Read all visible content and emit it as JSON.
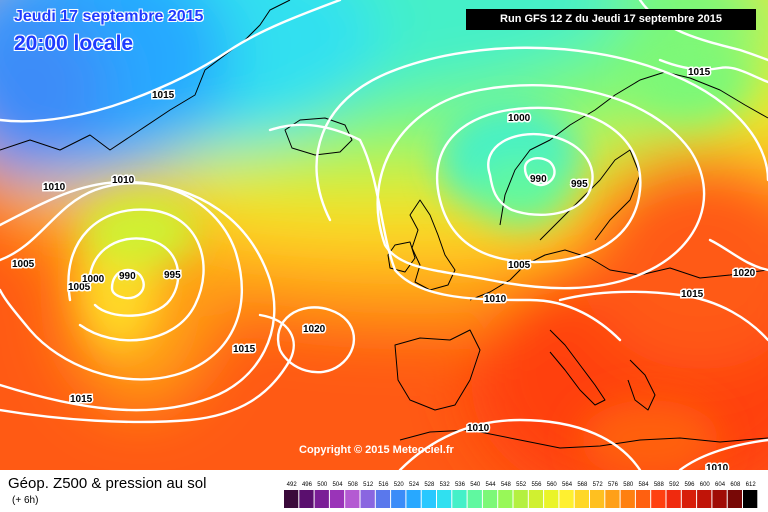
{
  "header": {
    "date": "Jeudi 17 septembre 2015",
    "time": "20:00 locale",
    "run": "Run GFS 12 Z du Jeudi 17 septembre 2015"
  },
  "map": {
    "copyright": "Copyright © 2015 Meteociel.fr",
    "isobar_labels": [
      "1015",
      "1010",
      "1010",
      "1005",
      "1005",
      "1000",
      "990",
      "995",
      "1020",
      "1015",
      "1015",
      "1000",
      "990",
      "995",
      "1005",
      "1010",
      "1015",
      "1015",
      "1020",
      "1010",
      "1010"
    ]
  },
  "legend": {
    "title": "Géop. Z500 & pression au sol",
    "subtitle": "(+ 6h)",
    "scale_values": [
      "492",
      "496",
      "500",
      "504",
      "508",
      "512",
      "516",
      "520",
      "524",
      "528",
      "532",
      "536",
      "540",
      "544",
      "548",
      "552",
      "556",
      "560",
      "564",
      "568",
      "572",
      "576",
      "580",
      "584",
      "588",
      "592",
      "596",
      "600",
      "604",
      "608",
      "612"
    ],
    "scale_colors": [
      "#3a0a3a",
      "#5a0f6e",
      "#7a1e96",
      "#9a34b8",
      "#b45ad2",
      "#8a66e0",
      "#5a78ec",
      "#3c8cf8",
      "#28a8ff",
      "#28c8ff",
      "#30e0f0",
      "#44f0c8",
      "#60f8a0",
      "#7cf878",
      "#98f858",
      "#b4f040",
      "#d0f030",
      "#eaf428",
      "#fff030",
      "#ffd828",
      "#ffc020",
      "#ffa018",
      "#ff8010",
      "#ff6010",
      "#ff4010",
      "#f02a0e",
      "#d81e0a",
      "#c01408",
      "#a00c06",
      "#780806",
      "#000000"
    ]
  }
}
